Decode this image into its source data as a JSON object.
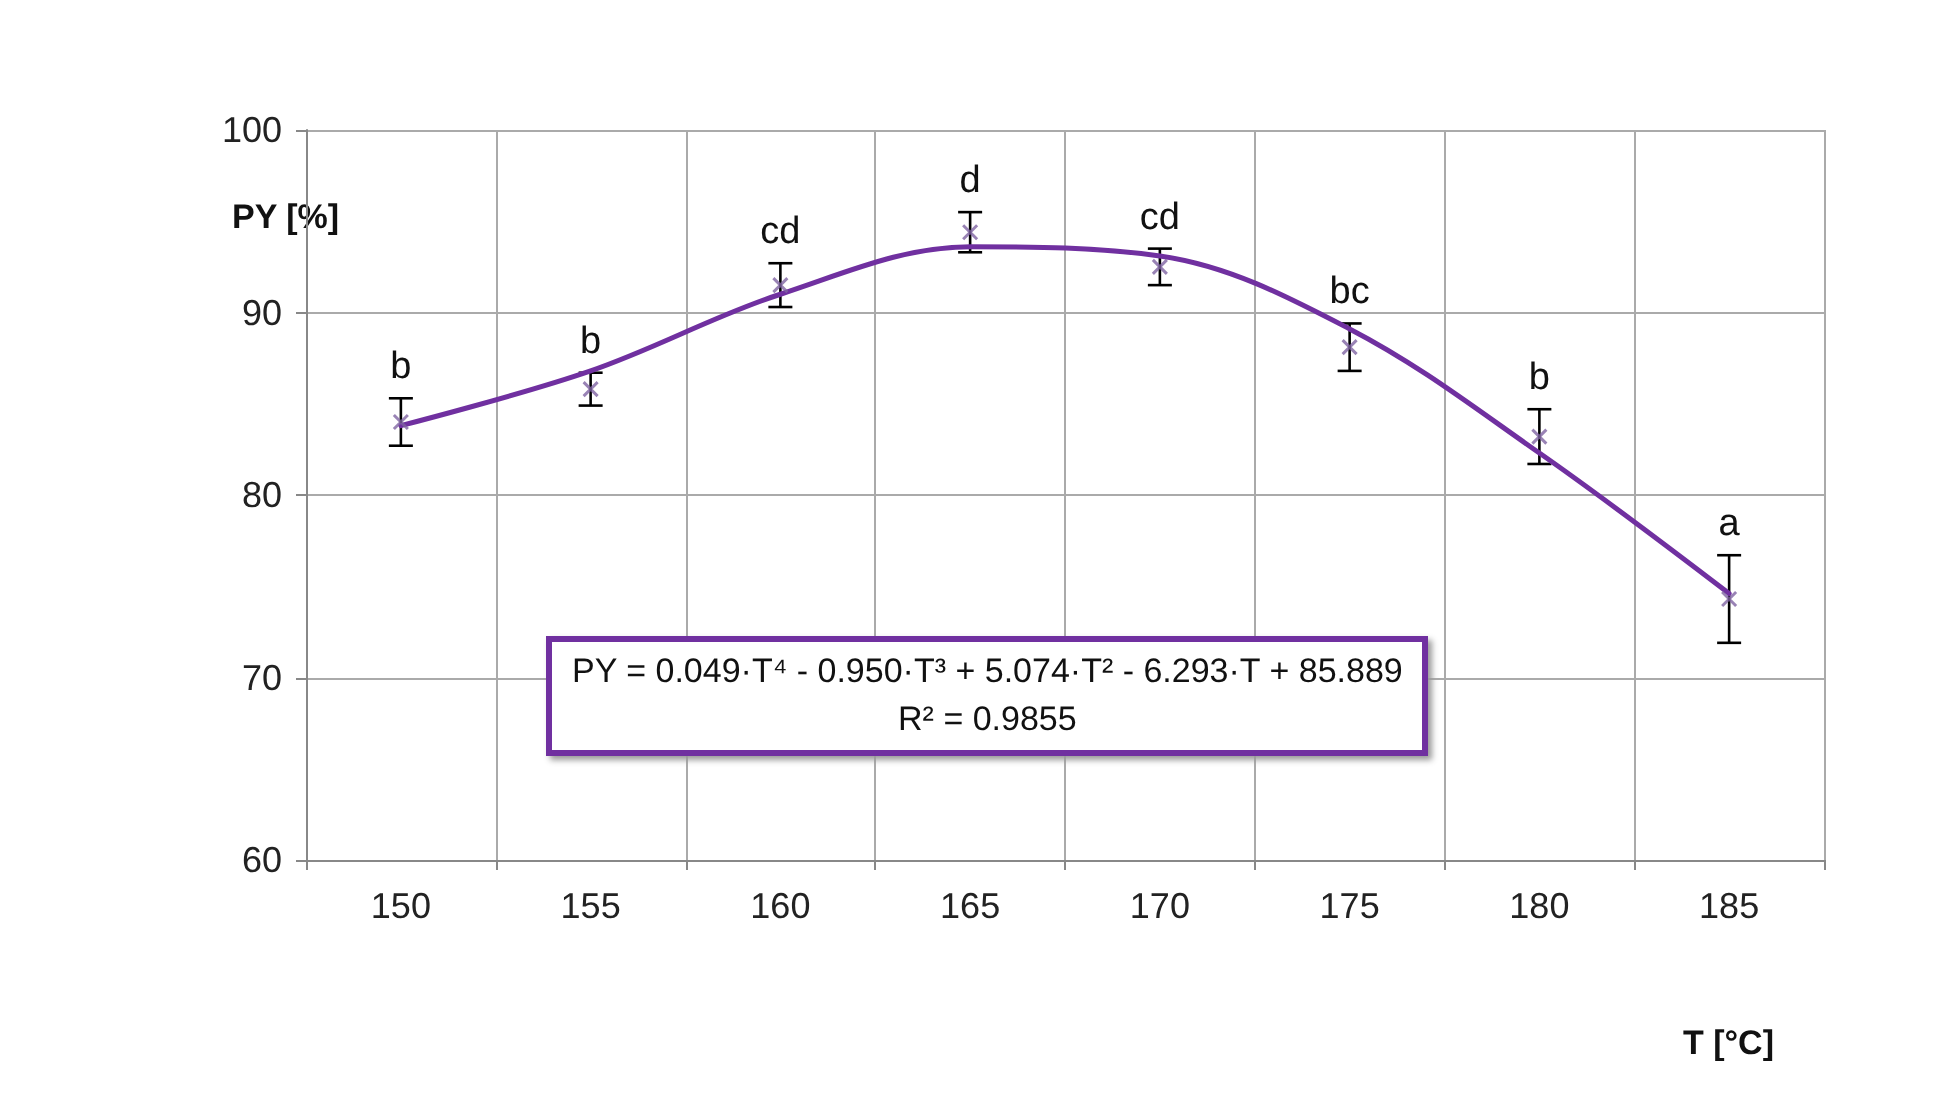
{
  "chart_data": {
    "type": "scatter",
    "xlabel": "T [°C]",
    "ylabel": "PY [%]",
    "categories": [
      "150",
      "155",
      "160",
      "165",
      "170",
      "175",
      "180",
      "185"
    ],
    "series": [
      {
        "color": "#8064a2",
        "marker": "cross",
        "values": [
          84.0,
          85.8,
          91.5,
          94.4,
          92.5,
          88.1,
          83.2,
          74.3
        ],
        "errors": [
          1.3,
          0.9,
          1.2,
          1.1,
          1.0,
          1.3,
          1.5,
          2.4
        ]
      },
      {
        "type": "line",
        "color": "#7030a0",
        "marker": "none",
        "line_style": "solid",
        "values": [
          83.8,
          86.8,
          91.0,
          93.6,
          93.1,
          89.1,
          82.3,
          74.6
        ]
      }
    ],
    "ylim": [
      60,
      100
    ],
    "yticks": [
      60,
      70,
      80,
      90,
      100
    ],
    "grid": true,
    "annotations": [
      {
        "text": "b",
        "x": "150",
        "y": 84.0
      },
      {
        "text": "b",
        "x": "155",
        "y": 85.8
      },
      {
        "text": "cd",
        "x": "160",
        "y": 91.5
      },
      {
        "text": "d",
        "x": "165",
        "y": 94.4
      },
      {
        "text": "cd",
        "x": "170",
        "y": 92.5
      },
      {
        "text": "bc",
        "x": "175",
        "y": 88.1
      },
      {
        "text": "b",
        "x": "180",
        "y": 83.2
      },
      {
        "text": "a",
        "x": "185",
        "y": 74.3
      },
      "PY = 0.049·T⁴ - 0.950·T³ + 5.074·T² - 6.293·T + 85.889",
      "R² = 0.9855"
    ]
  }
}
